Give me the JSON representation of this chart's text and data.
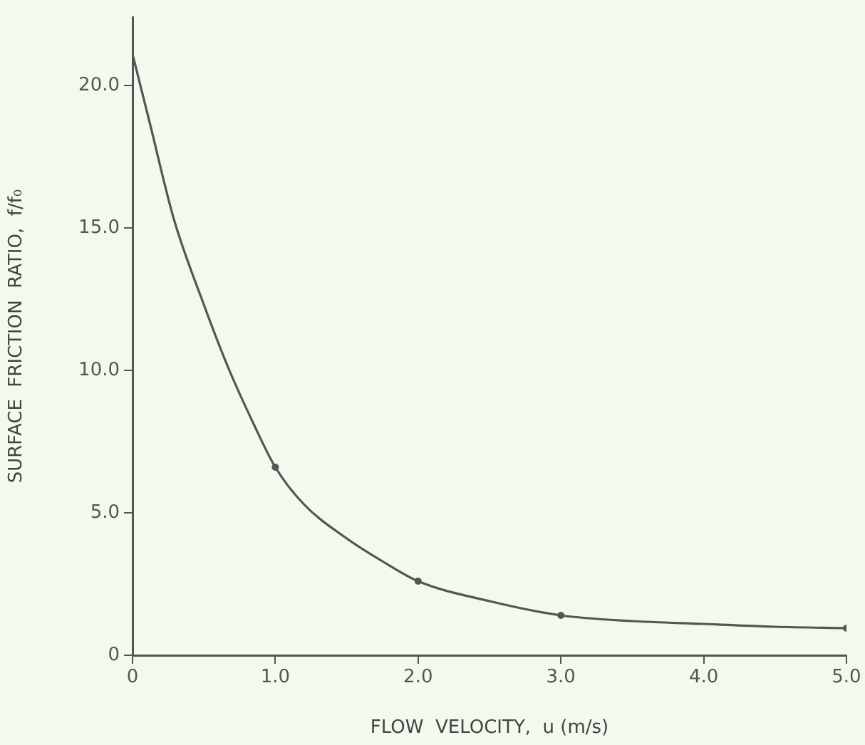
{
  "chart_data": {
    "type": "line",
    "xlabel": "FLOW  VELOCITY,  u (m/s)",
    "ylabel": "SURFACE  FRICTION  RATIO,  f/f₀",
    "xlim": [
      0,
      5
    ],
    "ylim": [
      0,
      22.4
    ],
    "xticks": [
      0,
      {
        "value": 1,
        "label": "1.0"
      },
      {
        "value": 2,
        "label": "2.0"
      },
      {
        "value": 3,
        "label": "3.0"
      },
      {
        "value": 4,
        "label": "4.0"
      },
      {
        "value": 5,
        "label": "5.0"
      }
    ],
    "yticks": [
      0,
      {
        "value": 5,
        "label": "5.0"
      },
      {
        "value": 10,
        "label": "10.0"
      },
      {
        "value": 15,
        "label": "15.0"
      },
      {
        "value": 20,
        "label": "20.0"
      }
    ],
    "grid": false,
    "legend": false,
    "marker": "none",
    "line_style": "solid",
    "series": [
      {
        "color": "#555555",
        "x": [
          0,
          0.12,
          0.29,
          0.5,
          0.67,
          0.85,
          1.0,
          1.2,
          1.5,
          1.75,
          2.0,
          2.5,
          3.0,
          3.5,
          4.0,
          4.5,
          5.0
        ],
        "values": [
          21.1,
          18.7,
          15.3,
          12.3,
          10.1,
          8.1,
          6.6,
          5.3,
          4.1,
          3.3,
          2.6,
          1.9,
          1.4,
          1.2,
          1.1,
          1.0,
          0.95
        ]
      },
      {
        "type": "scatter",
        "marker": "circle",
        "color": "#555555",
        "x": [
          1,
          2,
          3,
          5
        ],
        "values": [
          6.6,
          2.6,
          1.4,
          0.95
        ]
      }
    ]
  }
}
